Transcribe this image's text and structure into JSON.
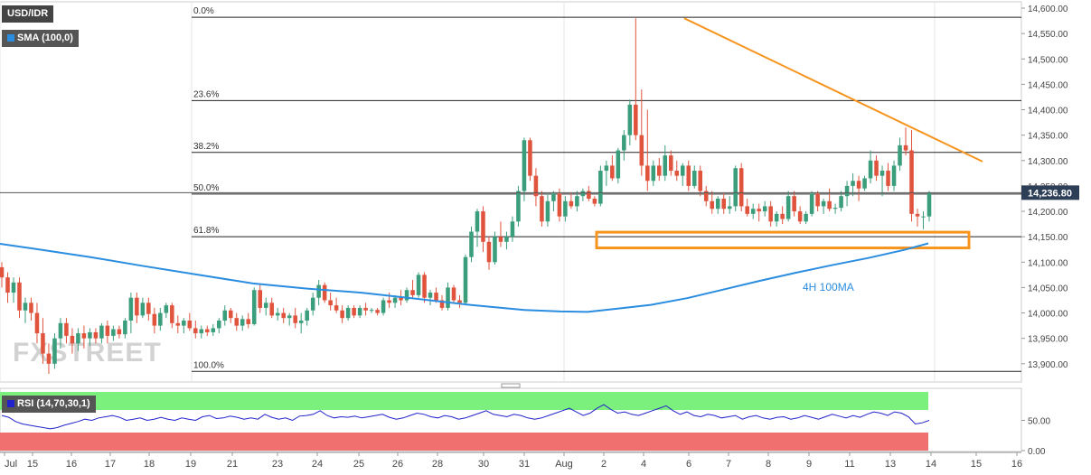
{
  "legend": {
    "symbol": "USD/IDR",
    "indicator": "SMA (100,0)",
    "rsi": "RSI (14,70,30,1)"
  },
  "watermark": "FXSTREET",
  "price_axis": {
    "current_price": "14,236.80"
  },
  "chart_data": {
    "type": "candlestick",
    "symbol": "USD/IDR",
    "timeframe": "4H",
    "ylim": [
      13870,
      14600
    ],
    "y_ticks": [
      "14,600.00",
      "14,550.00",
      "14,500.00",
      "14,450.00",
      "14,400.00",
      "14,350.00",
      "14,300.00",
      "14,250.00",
      "14,200.00",
      "14,150.00",
      "14,100.00",
      "14,050.00",
      "14,000.00",
      "13,950.00",
      "13,900.00"
    ],
    "x_ticks": [
      "Jul",
      "15",
      "16",
      "17",
      "18",
      "19",
      "21",
      "23",
      "24",
      "25",
      "26",
      "28",
      "30",
      "31",
      "Aug",
      "2",
      "4",
      "6",
      "7",
      "8",
      "9",
      "11",
      "13",
      "14",
      "15",
      "16"
    ],
    "last_price": 14236.8,
    "fibonacci": [
      {
        "label": "0.0%",
        "price": 14582
      },
      {
        "label": "23.6%",
        "price": 14418
      },
      {
        "label": "38.2%",
        "price": 14316
      },
      {
        "label": "50.0%",
        "price": 14234
      },
      {
        "label": "61.8%",
        "price": 14150
      },
      {
        "label": "100.0%",
        "price": 13885
      }
    ],
    "annotations": {
      "sma_label": "4H 100MA"
    },
    "sma_100": [
      [
        0,
        14136
      ],
      [
        40,
        14126
      ],
      [
        100,
        14110
      ],
      [
        160,
        14092
      ],
      [
        220,
        14075
      ],
      [
        280,
        14058
      ],
      [
        340,
        14048
      ],
      [
        400,
        14040
      ],
      [
        460,
        14028
      ],
      [
        520,
        14016
      ],
      [
        580,
        14006
      ],
      [
        620,
        14003
      ],
      [
        650,
        14002
      ],
      [
        680,
        14008
      ],
      [
        720,
        14016
      ],
      [
        760,
        14029
      ],
      [
        800,
        14046
      ],
      [
        840,
        14063
      ],
      [
        880,
        14079
      ],
      [
        920,
        14094
      ],
      [
        960,
        14108
      ],
      [
        1000,
        14124
      ],
      [
        1027,
        14137
      ]
    ],
    "trendline": [
      [
        757,
        14580
      ],
      [
        1087,
        14298
      ]
    ],
    "support_zone": {
      "x_from": 660,
      "x_to": 1072,
      "price_top": 14159,
      "price_bottom": 14128
    },
    "candles": [
      {
        "o": 14090,
        "h": 14100,
        "l": 14050,
        "c": 14070
      },
      {
        "o": 14070,
        "h": 14080,
        "l": 14020,
        "c": 14040
      },
      {
        "o": 14040,
        "h": 14070,
        "l": 14020,
        "c": 14060
      },
      {
        "o": 14060,
        "h": 14070,
        "l": 13990,
        "c": 14005
      },
      {
        "o": 14005,
        "h": 14030,
        "l": 13980,
        "c": 14020
      },
      {
        "o": 14020,
        "h": 14030,
        "l": 13985,
        "c": 14000
      },
      {
        "o": 14000,
        "h": 14020,
        "l": 13940,
        "c": 13960
      },
      {
        "o": 13960,
        "h": 13990,
        "l": 13900,
        "c": 13920
      },
      {
        "o": 13920,
        "h": 13940,
        "l": 13880,
        "c": 13900
      },
      {
        "o": 13900,
        "h": 13960,
        "l": 13890,
        "c": 13950
      },
      {
        "o": 13950,
        "h": 13990,
        "l": 13930,
        "c": 13980
      },
      {
        "o": 13980,
        "h": 13990,
        "l": 13940,
        "c": 13955
      },
      {
        "o": 13955,
        "h": 13970,
        "l": 13920,
        "c": 13940
      },
      {
        "o": 13940,
        "h": 13970,
        "l": 13925,
        "c": 13960
      },
      {
        "o": 13960,
        "h": 13975,
        "l": 13930,
        "c": 13950
      },
      {
        "o": 13950,
        "h": 13970,
        "l": 13935,
        "c": 13962
      },
      {
        "o": 13962,
        "h": 13970,
        "l": 13940,
        "c": 13950
      },
      {
        "o": 13950,
        "h": 13980,
        "l": 13940,
        "c": 13975
      },
      {
        "o": 13975,
        "h": 13985,
        "l": 13940,
        "c": 13955
      },
      {
        "o": 13955,
        "h": 13975,
        "l": 13945,
        "c": 13968
      },
      {
        "o": 13968,
        "h": 13975,
        "l": 13950,
        "c": 13958
      },
      {
        "o": 13958,
        "h": 13990,
        "l": 13950,
        "c": 13985
      },
      {
        "o": 13985,
        "h": 14040,
        "l": 13960,
        "c": 14030
      },
      {
        "o": 14030,
        "h": 14040,
        "l": 13980,
        "c": 13995
      },
      {
        "o": 13995,
        "h": 14030,
        "l": 13990,
        "c": 14020
      },
      {
        "o": 14020,
        "h": 14030,
        "l": 13985,
        "c": 13998
      },
      {
        "o": 13998,
        "h": 14010,
        "l": 13960,
        "c": 13975
      },
      {
        "o": 13975,
        "h": 14010,
        "l": 13965,
        "c": 14000
      },
      {
        "o": 14000,
        "h": 14020,
        "l": 13990,
        "c": 14015
      },
      {
        "o": 14015,
        "h": 14020,
        "l": 13970,
        "c": 13980
      },
      {
        "o": 13980,
        "h": 13995,
        "l": 13960,
        "c": 13975
      },
      {
        "o": 13975,
        "h": 13990,
        "l": 13960,
        "c": 13985
      },
      {
        "o": 13985,
        "h": 14000,
        "l": 13965,
        "c": 13970
      },
      {
        "o": 13970,
        "h": 13985,
        "l": 13950,
        "c": 13960
      },
      {
        "o": 13960,
        "h": 13975,
        "l": 13950,
        "c": 13968
      },
      {
        "o": 13968,
        "h": 13975,
        "l": 13955,
        "c": 13962
      },
      {
        "o": 13962,
        "h": 13978,
        "l": 13955,
        "c": 13970
      },
      {
        "o": 13970,
        "h": 13990,
        "l": 13960,
        "c": 13985
      },
      {
        "o": 13985,
        "h": 14015,
        "l": 13975,
        "c": 14005
      },
      {
        "o": 14005,
        "h": 14010,
        "l": 13980,
        "c": 13990
      },
      {
        "o": 13990,
        "h": 14000,
        "l": 13965,
        "c": 13975
      },
      {
        "o": 13975,
        "h": 13995,
        "l": 13965,
        "c": 13988
      },
      {
        "o": 13988,
        "h": 14000,
        "l": 13970,
        "c": 13978
      },
      {
        "o": 13978,
        "h": 14050,
        "l": 13975,
        "c": 14045
      },
      {
        "o": 14045,
        "h": 14055,
        "l": 14000,
        "c": 14010
      },
      {
        "o": 14010,
        "h": 14030,
        "l": 13995,
        "c": 14020
      },
      {
        "o": 14020,
        "h": 14030,
        "l": 13990,
        "c": 13995
      },
      {
        "o": 13995,
        "h": 14010,
        "l": 13985,
        "c": 14000
      },
      {
        "o": 14000,
        "h": 14010,
        "l": 13980,
        "c": 13990
      },
      {
        "o": 13990,
        "h": 14000,
        "l": 13975,
        "c": 13995
      },
      {
        "o": 13995,
        "h": 14010,
        "l": 13970,
        "c": 13980
      },
      {
        "o": 13980,
        "h": 14000,
        "l": 13960,
        "c": 13985
      },
      {
        "o": 13985,
        "h": 14010,
        "l": 13975,
        "c": 14005
      },
      {
        "o": 14005,
        "h": 14040,
        "l": 13995,
        "c": 14030
      },
      {
        "o": 14030,
        "h": 14065,
        "l": 14015,
        "c": 14055
      },
      {
        "o": 14055,
        "h": 14060,
        "l": 14020,
        "c": 14025
      },
      {
        "o": 14025,
        "h": 14040,
        "l": 14005,
        "c": 14015
      },
      {
        "o": 14015,
        "h": 14030,
        "l": 14000,
        "c": 14005
      },
      {
        "o": 14005,
        "h": 14015,
        "l": 13980,
        "c": 13990
      },
      {
        "o": 13990,
        "h": 14015,
        "l": 13985,
        "c": 14010
      },
      {
        "o": 14010,
        "h": 14015,
        "l": 13990,
        "c": 13995
      },
      {
        "o": 13995,
        "h": 14015,
        "l": 13990,
        "c": 14010
      },
      {
        "o": 14010,
        "h": 14020,
        "l": 13995,
        "c": 14005
      },
      {
        "o": 14005,
        "h": 14010,
        "l": 14000,
        "c": 14006
      },
      {
        "o": 14006,
        "h": 14010,
        "l": 13995,
        "c": 14000
      },
      {
        "o": 14000,
        "h": 14030,
        "l": 13995,
        "c": 14025
      },
      {
        "o": 14025,
        "h": 14040,
        "l": 14010,
        "c": 14020
      },
      {
        "o": 14020,
        "h": 14035,
        "l": 14010,
        "c": 14030
      },
      {
        "o": 14030,
        "h": 14045,
        "l": 14015,
        "c": 14025
      },
      {
        "o": 14025,
        "h": 14050,
        "l": 14020,
        "c": 14045
      },
      {
        "o": 14045,
        "h": 14065,
        "l": 14030,
        "c": 14035
      },
      {
        "o": 14035,
        "h": 14080,
        "l": 14030,
        "c": 14075
      },
      {
        "o": 14075,
        "h": 14080,
        "l": 14020,
        "c": 14030
      },
      {
        "o": 14030,
        "h": 14045,
        "l": 14015,
        "c": 14040
      },
      {
        "o": 14040,
        "h": 14050,
        "l": 14020,
        "c": 14025
      },
      {
        "o": 14025,
        "h": 14035,
        "l": 14005,
        "c": 14010
      },
      {
        "o": 14010,
        "h": 14060,
        "l": 14005,
        "c": 14050
      },
      {
        "o": 14050,
        "h": 14055,
        "l": 14020,
        "c": 14025
      },
      {
        "o": 14025,
        "h": 14035,
        "l": 14010,
        "c": 14020
      },
      {
        "o": 14020,
        "h": 14115,
        "l": 14015,
        "c": 14110
      },
      {
        "o": 14110,
        "h": 14170,
        "l": 14100,
        "c": 14160
      },
      {
        "o": 14160,
        "h": 14205,
        "l": 14130,
        "c": 14200
      },
      {
        "o": 14200,
        "h": 14210,
        "l": 14120,
        "c": 14140
      },
      {
        "o": 14140,
        "h": 14150,
        "l": 14085,
        "c": 14100
      },
      {
        "o": 14100,
        "h": 14160,
        "l": 14095,
        "c": 14150
      },
      {
        "o": 14150,
        "h": 14180,
        "l": 14130,
        "c": 14140
      },
      {
        "o": 14140,
        "h": 14160,
        "l": 14125,
        "c": 14150
      },
      {
        "o": 14150,
        "h": 14190,
        "l": 14140,
        "c": 14180
      },
      {
        "o": 14180,
        "h": 14250,
        "l": 14170,
        "c": 14240
      },
      {
        "o": 14240,
        "h": 14345,
        "l": 14220,
        "c": 14340
      },
      {
        "o": 14340,
        "h": 14345,
        "l": 14260,
        "c": 14270
      },
      {
        "o": 14270,
        "h": 14285,
        "l": 14210,
        "c": 14230
      },
      {
        "o": 14230,
        "h": 14240,
        "l": 14170,
        "c": 14180
      },
      {
        "o": 14180,
        "h": 14235,
        "l": 14170,
        "c": 14220
      },
      {
        "o": 14220,
        "h": 14240,
        "l": 14200,
        "c": 14235
      },
      {
        "o": 14235,
        "h": 14245,
        "l": 14180,
        "c": 14190
      },
      {
        "o": 14190,
        "h": 14230,
        "l": 14180,
        "c": 14220
      },
      {
        "o": 14220,
        "h": 14235,
        "l": 14205,
        "c": 14210
      },
      {
        "o": 14210,
        "h": 14240,
        "l": 14200,
        "c": 14230
      },
      {
        "o": 14230,
        "h": 14245,
        "l": 14220,
        "c": 14240
      },
      {
        "o": 14240,
        "h": 14250,
        "l": 14220,
        "c": 14225
      },
      {
        "o": 14225,
        "h": 14230,
        "l": 14210,
        "c": 14215
      },
      {
        "o": 14215,
        "h": 14290,
        "l": 14210,
        "c": 14280
      },
      {
        "o": 14280,
        "h": 14300,
        "l": 14250,
        "c": 14290
      },
      {
        "o": 14290,
        "h": 14310,
        "l": 14260,
        "c": 14265
      },
      {
        "o": 14265,
        "h": 14325,
        "l": 14255,
        "c": 14320
      },
      {
        "o": 14320,
        "h": 14360,
        "l": 14300,
        "c": 14350
      },
      {
        "o": 14350,
        "h": 14420,
        "l": 14330,
        "c": 14410
      },
      {
        "o": 14410,
        "h": 14580,
        "l": 14340,
        "c": 14350
      },
      {
        "o": 14350,
        "h": 14440,
        "l": 14270,
        "c": 14290
      },
      {
        "o": 14290,
        "h": 14400,
        "l": 14240,
        "c": 14260
      },
      {
        "o": 14260,
        "h": 14300,
        "l": 14250,
        "c": 14290
      },
      {
        "o": 14290,
        "h": 14305,
        "l": 14260,
        "c": 14270
      },
      {
        "o": 14270,
        "h": 14330,
        "l": 14260,
        "c": 14310
      },
      {
        "o": 14310,
        "h": 14320,
        "l": 14270,
        "c": 14280
      },
      {
        "o": 14280,
        "h": 14300,
        "l": 14260,
        "c": 14270
      },
      {
        "o": 14270,
        "h": 14295,
        "l": 14250,
        "c": 14290
      },
      {
        "o": 14290,
        "h": 14300,
        "l": 14240,
        "c": 14250
      },
      {
        "o": 14250,
        "h": 14290,
        "l": 14245,
        "c": 14280
      },
      {
        "o": 14280,
        "h": 14290,
        "l": 14230,
        "c": 14240
      },
      {
        "o": 14240,
        "h": 14250,
        "l": 14210,
        "c": 14220
      },
      {
        "o": 14220,
        "h": 14240,
        "l": 14195,
        "c": 14205
      },
      {
        "o": 14205,
        "h": 14230,
        "l": 14195,
        "c": 14225
      },
      {
        "o": 14225,
        "h": 14235,
        "l": 14195,
        "c": 14205
      },
      {
        "o": 14205,
        "h": 14230,
        "l": 14195,
        "c": 14210
      },
      {
        "o": 14210,
        "h": 14290,
        "l": 14200,
        "c": 14285
      },
      {
        "o": 14285,
        "h": 14295,
        "l": 14200,
        "c": 14210
      },
      {
        "o": 14210,
        "h": 14225,
        "l": 14190,
        "c": 14195
      },
      {
        "o": 14195,
        "h": 14215,
        "l": 14185,
        "c": 14205
      },
      {
        "o": 14205,
        "h": 14215,
        "l": 14180,
        "c": 14200
      },
      {
        "o": 14200,
        "h": 14220,
        "l": 14190,
        "c": 14210
      },
      {
        "o": 14210,
        "h": 14220,
        "l": 14170,
        "c": 14180
      },
      {
        "o": 14180,
        "h": 14200,
        "l": 14170,
        "c": 14195
      },
      {
        "o": 14195,
        "h": 14210,
        "l": 14175,
        "c": 14185
      },
      {
        "o": 14185,
        "h": 14240,
        "l": 14180,
        "c": 14230
      },
      {
        "o": 14230,
        "h": 14240,
        "l": 14190,
        "c": 14200
      },
      {
        "o": 14200,
        "h": 14210,
        "l": 14175,
        "c": 14180
      },
      {
        "o": 14180,
        "h": 14200,
        "l": 14175,
        "c": 14195
      },
      {
        "o": 14195,
        "h": 14240,
        "l": 14190,
        "c": 14235
      },
      {
        "o": 14235,
        "h": 14240,
        "l": 14200,
        "c": 14210
      },
      {
        "o": 14210,
        "h": 14225,
        "l": 14195,
        "c": 14220
      },
      {
        "o": 14220,
        "h": 14245,
        "l": 14200,
        "c": 14205
      },
      {
        "o": 14205,
        "h": 14215,
        "l": 14195,
        "c": 14207
      },
      {
        "o": 14207,
        "h": 14240,
        "l": 14200,
        "c": 14230
      },
      {
        "o": 14230,
        "h": 14260,
        "l": 14210,
        "c": 14250
      },
      {
        "o": 14250,
        "h": 14275,
        "l": 14230,
        "c": 14260
      },
      {
        "o": 14260,
        "h": 14270,
        "l": 14220,
        "c": 14245
      },
      {
        "o": 14245,
        "h": 14270,
        "l": 14240,
        "c": 14265
      },
      {
        "o": 14265,
        "h": 14320,
        "l": 14255,
        "c": 14300
      },
      {
        "o": 14300,
        "h": 14310,
        "l": 14260,
        "c": 14270
      },
      {
        "o": 14270,
        "h": 14290,
        "l": 14230,
        "c": 14280
      },
      {
        "o": 14280,
        "h": 14295,
        "l": 14240,
        "c": 14250
      },
      {
        "o": 14250,
        "h": 14300,
        "l": 14240,
        "c": 14290
      },
      {
        "o": 14290,
        "h": 14345,
        "l": 14280,
        "c": 14330
      },
      {
        "o": 14330,
        "h": 14365,
        "l": 14310,
        "c": 14320
      },
      {
        "o": 14320,
        "h": 14360,
        "l": 14180,
        "c": 14195
      },
      {
        "o": 14195,
        "h": 14205,
        "l": 14170,
        "c": 14190
      },
      {
        "o": 14190,
        "h": 14200,
        "l": 14165,
        "c": 14190
      },
      {
        "o": 14190,
        "h": 14240,
        "l": 14180,
        "c": 14236.8
      }
    ],
    "rsi": {
      "name": "RSI (14,70,30,1)",
      "ylim": [
        0,
        100
      ],
      "y_ticks": [
        "50.00",
        "0.00"
      ],
      "overbought": 70,
      "oversold": 30,
      "values": [
        58,
        55,
        48,
        44,
        42,
        40,
        38,
        36,
        38,
        42,
        45,
        48,
        52,
        50,
        54,
        56,
        58,
        55,
        50,
        52,
        54,
        50,
        52,
        55,
        52,
        50,
        54,
        52,
        50,
        56,
        58,
        53,
        54,
        57,
        55,
        52,
        54,
        52,
        60,
        55,
        52,
        54,
        50,
        57,
        58,
        60,
        66,
        58,
        54,
        56,
        55,
        57,
        54,
        56,
        58,
        60,
        55,
        52,
        54,
        58,
        62,
        60,
        56,
        54,
        58,
        56,
        52,
        54,
        58,
        62,
        66,
        60,
        58,
        56,
        60,
        58,
        54,
        52,
        54,
        58,
        62,
        66,
        70,
        64,
        58,
        62,
        70,
        76,
        68,
        62,
        64,
        60,
        58,
        62,
        66,
        70,
        74,
        66,
        60,
        64,
        58,
        56,
        60,
        58,
        54,
        56,
        58,
        52,
        56,
        58,
        54,
        52,
        55,
        56,
        52,
        54,
        58,
        55,
        52,
        56,
        60,
        57,
        54,
        58,
        55,
        60,
        64,
        62,
        58,
        64,
        62,
        56,
        44,
        46,
        50
      ]
    }
  }
}
